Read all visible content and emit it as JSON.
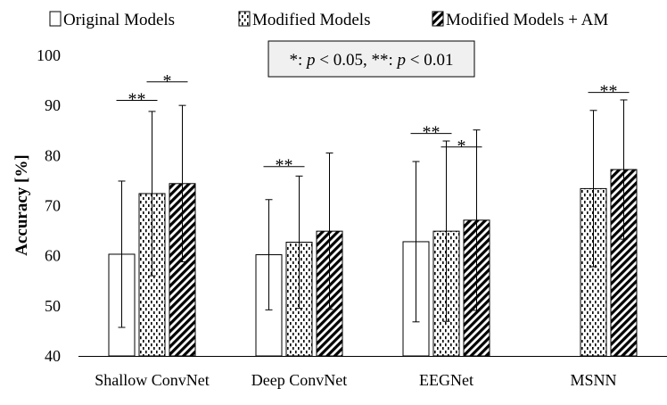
{
  "chart_data": {
    "type": "bar",
    "title": "",
    "xlabel": "",
    "ylabel": "Accuracy [%]",
    "ylim": [
      40,
      100
    ],
    "yticks": [
      "40",
      "50",
      "60",
      "70",
      "80",
      "90",
      "100"
    ],
    "grid": false,
    "legend_position": "top",
    "categories": [
      "Shallow ConvNet",
      "Deep ConvNet",
      "EEGNet",
      "MSNN"
    ],
    "series": [
      {
        "name": "Original Models",
        "pattern": "open",
        "values": [
          60.3,
          60.2,
          62.8,
          null
        ],
        "error": [
          14.6,
          11.0,
          16.0,
          null
        ]
      },
      {
        "name": "Modified Models",
        "pattern": "dots",
        "values": [
          72.4,
          62.7,
          64.9,
          73.4
        ],
        "error": [
          16.4,
          13.2,
          18.0,
          15.6
        ]
      },
      {
        "name": "Modified Models + AM",
        "pattern": "diagonal",
        "values": [
          74.4,
          64.9,
          67.1,
          77.2
        ],
        "error": [
          15.6,
          15.6,
          18.0,
          13.9
        ]
      }
    ],
    "annotation_box": {
      "text": "*: p < 0.05, **: p < 0.01",
      "parts": [
        "*: ",
        "p",
        " < 0.05, **: ",
        "p",
        " < 0.01"
      ]
    },
    "significance": [
      {
        "category": 0,
        "from_series": 0,
        "to_series": 1,
        "label": "**",
        "level": 91
      },
      {
        "category": 0,
        "from_series": 1,
        "to_series": 2,
        "label": "*",
        "level": 94.7
      },
      {
        "category": 1,
        "from_series": 0,
        "to_series": 1,
        "label": "**",
        "level": 77.8
      },
      {
        "category": 2,
        "from_series": 0,
        "to_series": 1,
        "label": "**",
        "level": 84.4
      },
      {
        "category": 2,
        "from_series": 1,
        "to_series": 2,
        "label": "*",
        "level": 81.7
      },
      {
        "category": 3,
        "from_series": 1,
        "to_series": 2,
        "label": "**",
        "level": 92.6
      }
    ]
  }
}
